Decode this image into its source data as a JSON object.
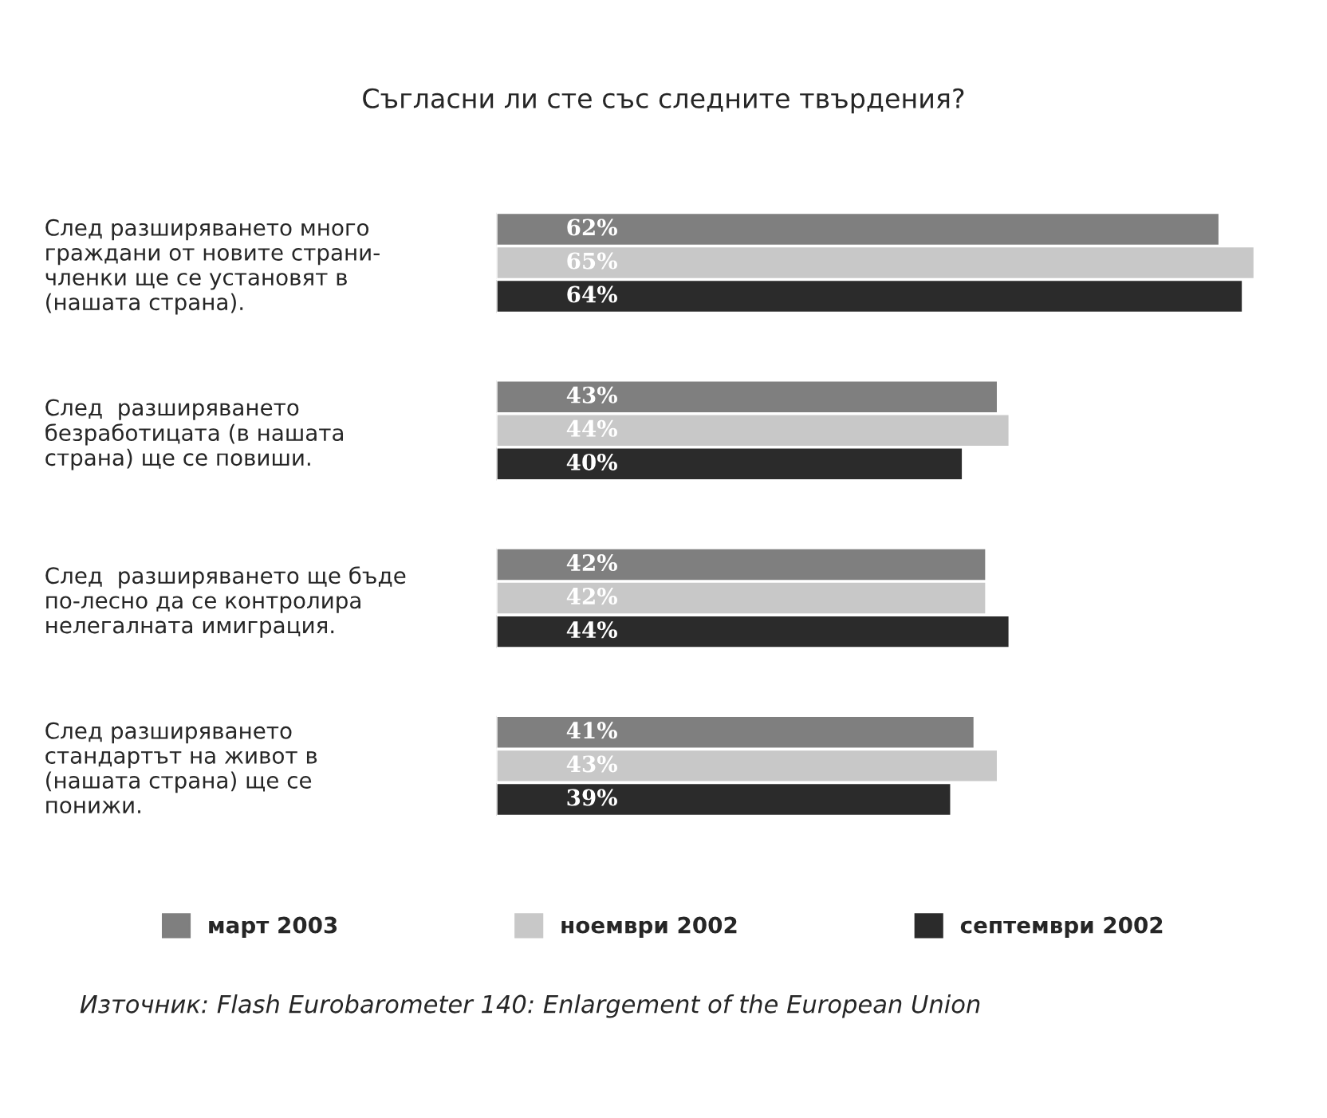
{
  "chart_data": {
    "type": "bar",
    "orientation": "horizontal",
    "title": "Съгласни ли сте със следните твърдения?",
    "categories": [
      "След разширяването много\nграждани от новите страни-\nчленки ще се установят в\n(нашата страна).",
      "След  разширяването\nбезработицата (в нашата\nстрана) ще се повиши.",
      "След  разширяването ще бъде\nпо-лесно да се контролира\nнелегалната имиграция.",
      "След разширяването\nстандартът на живот в\n(нашата страна) ще се\nпонижи."
    ],
    "series": [
      {
        "name": "март 2003",
        "color": "#7f7f7f",
        "values": [
          62,
          43,
          42,
          41
        ],
        "value_labels": [
          "62%",
          "43%",
          "42%",
          "41%"
        ]
      },
      {
        "name": "ноември 2002",
        "color": "#c8c8c8",
        "values": [
          65,
          44,
          42,
          43
        ],
        "value_labels": [
          "65%",
          "44%",
          "42%",
          "43%"
        ]
      },
      {
        "name": "септември 2002",
        "color": "#2b2b2b",
        "values": [
          64,
          40,
          44,
          39
        ],
        "value_labels": [
          "64%",
          "40%",
          "44%",
          "39%"
        ]
      }
    ],
    "legend": "bottom",
    "grid": false,
    "annotations": [
      "Източник: Flash Eurobarometer 140: Enlargement of the European Union"
    ]
  }
}
